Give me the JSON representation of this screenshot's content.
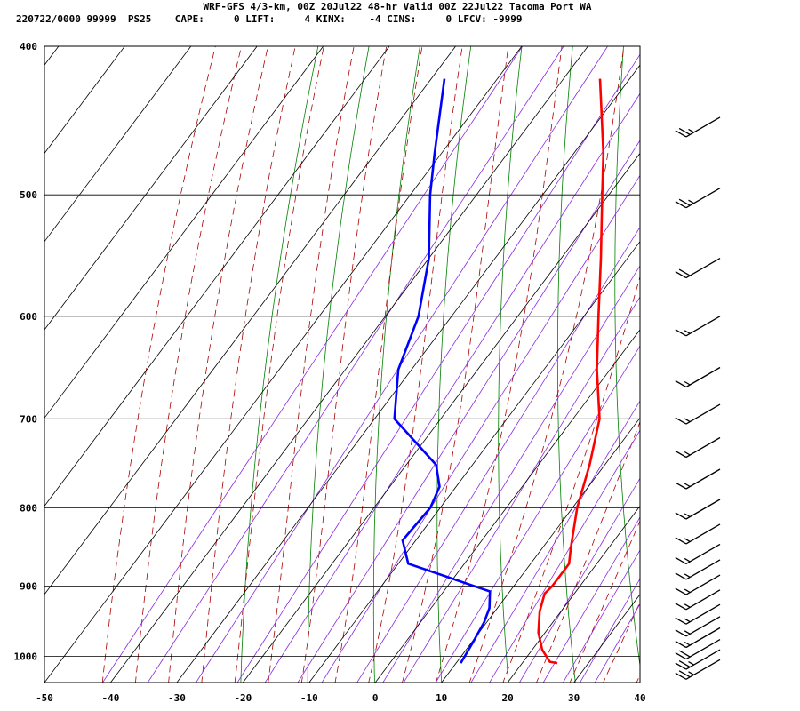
{
  "header": {
    "line1": "WRF-GFS 4/3-km, 00Z 20Jul22 48-hr Valid 00Z 22Jul22 Tacoma Port WA",
    "line2": "220722/0000 99999  PS25    CAPE:     0 LIFT:     4 KINX:    -4 CINS:     0 LFCV: -9999"
  },
  "chart_data": {
    "type": "line",
    "title": "WRF-GFS 4/3-km, 00Z 20Jul22 48-hr Valid 00Z 22Jul22 Tacoma Port WA",
    "subtitle": "220722/0000 99999  PS25    CAPE:     0 LIFT:     4 KINX:    -4 CINS:     0 LFCV: -9999",
    "xlabel": "",
    "ylabel": "",
    "x_axis": {
      "min": -50,
      "max": 40,
      "ticks": [
        -50,
        -40,
        -30,
        -20,
        -10,
        0,
        10,
        20,
        30,
        40
      ]
    },
    "y_axis": {
      "scale": "log",
      "top": 400,
      "bottom": 1040,
      "ticks": [
        400,
        500,
        600,
        700,
        800,
        900,
        1000
      ]
    },
    "skew": "skew-T log-P",
    "grid": true,
    "series": [
      {
        "color": "#ff0000",
        "points": [
          {
            "p": 1010,
            "t": 25.3
          },
          {
            "p": 1008,
            "t": 24
          },
          {
            "p": 990,
            "t": 21.5
          },
          {
            "p": 965,
            "t": 19
          },
          {
            "p": 935,
            "t": 16.8
          },
          {
            "p": 910,
            "t": 15.5
          },
          {
            "p": 900,
            "t": 15.8
          },
          {
            "p": 870,
            "t": 15.8
          },
          {
            "p": 850,
            "t": 14.3
          },
          {
            "p": 800,
            "t": 10.7
          },
          {
            "p": 750,
            "t": 7.7
          },
          {
            "p": 700,
            "t": 4
          },
          {
            "p": 650,
            "t": -2
          },
          {
            "p": 600,
            "t": -7.8
          },
          {
            "p": 550,
            "t": -14
          },
          {
            "p": 500,
            "t": -21
          },
          {
            "p": 470,
            "t": -25.5
          },
          {
            "p": 420,
            "t": -34.5
          }
        ]
      },
      {
        "color": "#0000ff",
        "points": [
          {
            "p": 1010,
            "t": 10.7
          },
          {
            "p": 980,
            "t": 10.2
          },
          {
            "p": 950,
            "t": 9.6
          },
          {
            "p": 930,
            "t": 8.8
          },
          {
            "p": 907,
            "t": 7
          },
          {
            "p": 870,
            "t": -8.5
          },
          {
            "p": 840,
            "t": -12
          },
          {
            "p": 800,
            "t": -11.5
          },
          {
            "p": 775,
            "t": -12.5
          },
          {
            "p": 750,
            "t": -15.5
          },
          {
            "p": 700,
            "t": -27
          },
          {
            "p": 650,
            "t": -32
          },
          {
            "p": 600,
            "t": -35
          },
          {
            "p": 550,
            "t": -40
          },
          {
            "p": 500,
            "t": -47
          },
          {
            "p": 470,
            "t": -51
          },
          {
            "p": 420,
            "t": -58
          }
        ]
      }
    ],
    "wind_barbs": [
      {
        "p": 1005,
        "barbs": 2.5
      },
      {
        "p": 990,
        "barbs": 2.5
      },
      {
        "p": 975,
        "barbs": 2
      },
      {
        "p": 958,
        "barbs": 1.5
      },
      {
        "p": 942,
        "barbs": 1.5
      },
      {
        "p": 925,
        "barbs": 1.5
      },
      {
        "p": 905,
        "barbs": 1.5
      },
      {
        "p": 885,
        "barbs": 1.5
      },
      {
        "p": 865,
        "barbs": 1.5
      },
      {
        "p": 845,
        "barbs": 1.5
      },
      {
        "p": 820,
        "barbs": 1.5
      },
      {
        "p": 790,
        "barbs": 1.5
      },
      {
        "p": 755,
        "barbs": 1.5
      },
      {
        "p": 720,
        "barbs": 1.5
      },
      {
        "p": 685,
        "barbs": 1.5
      },
      {
        "p": 648,
        "barbs": 1.5
      },
      {
        "p": 600,
        "barbs": 1.5
      },
      {
        "p": 550,
        "barbs": 2
      },
      {
        "p": 495,
        "barbs": 2.5
      },
      {
        "p": 445,
        "barbs": 2.5
      }
    ],
    "colors": {
      "temperature": "#ff0000",
      "dewpoint": "#0000ff",
      "isotherm_grid": "#000000",
      "dry_adiabat": "#008000",
      "moist_adiabat": "#aa0000",
      "mixing_ratio": "#8a2be2",
      "wind_barb": "#000000"
    }
  }
}
